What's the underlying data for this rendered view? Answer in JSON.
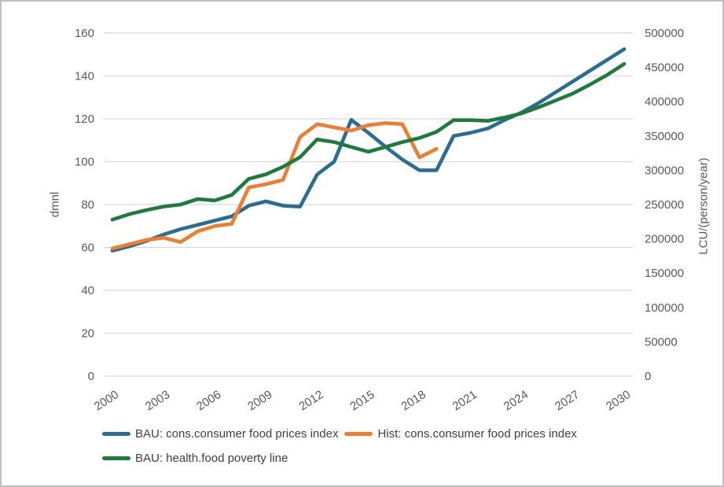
{
  "chart_data": {
    "type": "line",
    "title": "",
    "grid": "horizontal",
    "legend_position": "bottom-left",
    "x": {
      "label": "",
      "years": [
        2000,
        2001,
        2002,
        2003,
        2004,
        2005,
        2006,
        2007,
        2008,
        2009,
        2010,
        2011,
        2012,
        2013,
        2014,
        2015,
        2016,
        2017,
        2018,
        2019,
        2020,
        2021,
        2022,
        2023,
        2024,
        2025,
        2026,
        2027,
        2028,
        2029,
        2030
      ],
      "tick_labels": [
        "2000",
        "2003",
        "2006",
        "2009",
        "2012",
        "2015",
        "2018",
        "2021",
        "2024",
        "2027",
        "2030"
      ]
    },
    "y_left": {
      "label": "dmnl",
      "min": 0,
      "max": 160,
      "step": 20,
      "tick_labels": [
        "0",
        "20",
        "40",
        "60",
        "80",
        "100",
        "120",
        "140",
        "160"
      ]
    },
    "y_right": {
      "label": "LCU/(person/year)",
      "min": 0,
      "max": 500000,
      "step": 50000,
      "tick_labels": [
        "0",
        "50000",
        "100000",
        "150000",
        "200000",
        "250000",
        "300000",
        "350000",
        "400000",
        "450000",
        "500000"
      ]
    },
    "series": [
      {
        "name": "BAU: cons.consumer food prices index",
        "color": "#2A6C94",
        "axis": "left",
        "start_year": 2000,
        "values": [
          58.5,
          60.5,
          63,
          66,
          68.5,
          70.5,
          72.5,
          74.5,
          79.5,
          81.5,
          79.5,
          79,
          94,
          100,
          119.5,
          113.5,
          107,
          101,
          96,
          96,
          112,
          113.5,
          115.5,
          119.5,
          123,
          127.5,
          132.5,
          137.5,
          142.5,
          147.5,
          152.5
        ]
      },
      {
        "name": "Hist: cons.consumer food prices index",
        "color": "#ED7D31",
        "axis": "left",
        "start_year": 2000,
        "values": [
          59.5,
          61.5,
          63.5,
          64.5,
          62.5,
          67.5,
          70,
          71,
          88,
          89.5,
          91.5,
          111.5,
          117.5,
          116,
          114.5,
          117,
          118,
          117.5,
          102,
          106
        ]
      },
      {
        "name": "BAU: health.food poverty line",
        "color": "#1F7B3D",
        "axis": "right",
        "start_year": 2000,
        "values": [
          228000,
          236000,
          242000,
          247000,
          250000,
          258000,
          256000,
          264000,
          287500,
          294000,
          305000,
          319000,
          345000,
          341000,
          334000,
          327000,
          334000,
          341000,
          347000,
          356000,
          373000,
          373000,
          372000,
          377000,
          383000,
          392000,
          402000,
          412000,
          425000,
          439000,
          455000
        ]
      }
    ]
  },
  "colors": {
    "background": "#ffffff",
    "frame_border": "#bfbfbf",
    "gridline": "#d9d9d9",
    "axis_text": "#595959",
    "legend_text": "#404040"
  }
}
